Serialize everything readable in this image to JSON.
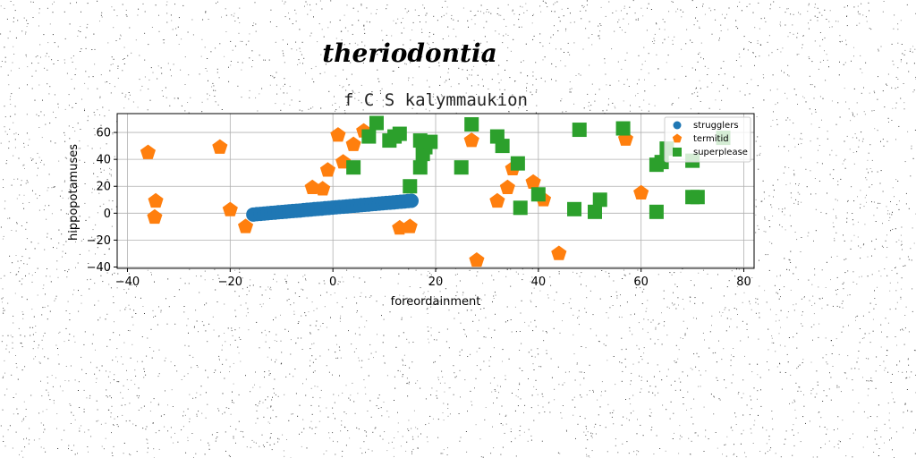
{
  "colors": {
    "struggler": "#1f77b4",
    "termitid": "#ff7f0e",
    "superplease": "#2ca02c",
    "grid": "#b0b0b0"
  },
  "chart_data": {
    "type": "scatter",
    "suptitle": "theriodontia",
    "title": "f C S kalymmaukion",
    "xlabel": "foreordainment",
    "ylabel": "hippopotamuses",
    "xlim": [
      -42,
      82
    ],
    "ylim": [
      -41,
      74
    ],
    "xticks": [
      -40,
      -20,
      0,
      20,
      40,
      60,
      80
    ],
    "yticks": [
      -40,
      -20,
      0,
      20,
      40,
      60
    ],
    "grid": true,
    "legend_position": "top-right",
    "series": [
      {
        "name": "strugglers",
        "marker": "circle",
        "points": [
          [
            -15.5,
            -1
          ],
          [
            -14.8,
            -0.7
          ],
          [
            -14.1,
            -0.5
          ],
          [
            -13.4,
            -0.3
          ],
          [
            -12.7,
            0
          ],
          [
            -12,
            0.2
          ],
          [
            -11.3,
            0.4
          ],
          [
            -10.6,
            0.7
          ],
          [
            -9.9,
            0.9
          ],
          [
            -9.2,
            1.1
          ],
          [
            -8.5,
            1.4
          ],
          [
            -7.8,
            1.6
          ],
          [
            -7.1,
            1.8
          ],
          [
            -6.4,
            2
          ],
          [
            -5.7,
            2.3
          ],
          [
            -5,
            2.5
          ],
          [
            -4.3,
            2.7
          ],
          [
            -3.6,
            3
          ],
          [
            -2.9,
            3.2
          ],
          [
            -2.2,
            3.4
          ],
          [
            -1.5,
            3.7
          ],
          [
            -0.8,
            3.9
          ],
          [
            -0.1,
            4.1
          ],
          [
            0.6,
            4.4
          ],
          [
            1.3,
            4.6
          ],
          [
            2,
            4.8
          ],
          [
            2.7,
            5
          ],
          [
            3.4,
            5.3
          ],
          [
            4.1,
            5.5
          ],
          [
            4.8,
            5.7
          ],
          [
            5.5,
            6
          ],
          [
            6.2,
            6.2
          ],
          [
            6.9,
            6.4
          ],
          [
            7.6,
            6.7
          ],
          [
            8.3,
            6.9
          ],
          [
            9,
            7.1
          ],
          [
            9.7,
            7.4
          ],
          [
            10.4,
            7.6
          ],
          [
            11.1,
            7.8
          ],
          [
            11.8,
            8
          ],
          [
            12.5,
            8.3
          ],
          [
            13.2,
            8.5
          ],
          [
            13.9,
            8.7
          ],
          [
            14.6,
            9
          ],
          [
            15.3,
            9.2
          ]
        ]
      },
      {
        "name": "termitid",
        "marker": "pentagon",
        "points": [
          [
            -36,
            45
          ],
          [
            -34.5,
            9
          ],
          [
            -34.7,
            -3
          ],
          [
            -22,
            49
          ],
          [
            -20,
            2.5
          ],
          [
            -17,
            -10
          ],
          [
            -4,
            19
          ],
          [
            -2,
            18
          ],
          [
            -1,
            32
          ],
          [
            1,
            58
          ],
          [
            2,
            38
          ],
          [
            4,
            51
          ],
          [
            6,
            61
          ],
          [
            13,
            -11
          ],
          [
            15,
            -10
          ],
          [
            27,
            54
          ],
          [
            28,
            -35
          ],
          [
            32,
            9
          ],
          [
            34,
            19
          ],
          [
            35,
            33
          ],
          [
            39,
            23
          ],
          [
            41,
            10
          ],
          [
            44,
            -30
          ],
          [
            57,
            55
          ],
          [
            60,
            15
          ]
        ]
      },
      {
        "name": "superplease",
        "marker": "square",
        "points": [
          [
            4,
            34
          ],
          [
            7,
            57
          ],
          [
            8.5,
            67
          ],
          [
            11,
            54
          ],
          [
            12,
            57
          ],
          [
            13,
            59
          ],
          [
            15,
            20
          ],
          [
            17,
            54
          ],
          [
            17,
            34
          ],
          [
            17.5,
            44
          ],
          [
            18,
            49
          ],
          [
            19,
            53
          ],
          [
            25,
            34
          ],
          [
            27,
            66
          ],
          [
            32,
            57
          ],
          [
            33,
            50
          ],
          [
            36,
            37
          ],
          [
            36.5,
            4
          ],
          [
            40,
            14
          ],
          [
            47,
            3
          ],
          [
            48,
            62
          ],
          [
            51,
            1
          ],
          [
            52,
            10
          ],
          [
            56.5,
            63
          ],
          [
            63,
            1
          ],
          [
            63,
            36
          ],
          [
            64,
            38
          ],
          [
            65,
            48
          ],
          [
            70,
            12
          ],
          [
            70,
            39
          ],
          [
            71,
            12
          ],
          [
            76,
            56
          ]
        ]
      }
    ]
  }
}
